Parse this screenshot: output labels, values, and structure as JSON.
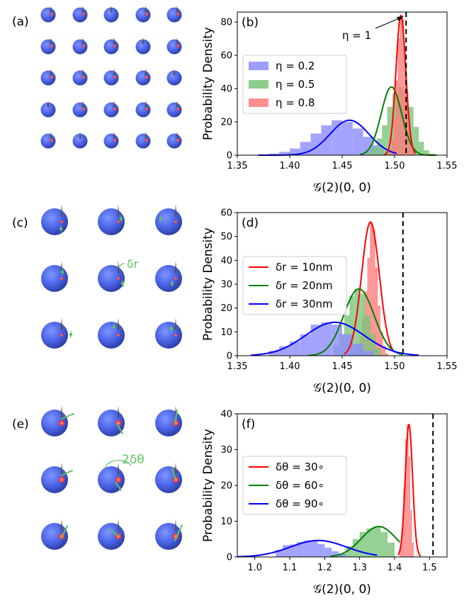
{
  "figure": {
    "panel_labels": {
      "a": "(a)",
      "c": "(c)",
      "e": "(e)"
    },
    "lattice_a": {
      "rows": 5,
      "cols": 5
    },
    "lattice_c": {
      "rows": 3,
      "cols": 3,
      "annotation": "δr"
    },
    "lattice_e": {
      "rows": 3,
      "cols": 3,
      "annotation": "2δθ"
    },
    "colors": {
      "sphere": "#4a64e8",
      "sphere_dark": "#2a3a9c",
      "emitter": "#ee3333",
      "displacement": "#5fc35f",
      "dipole": "#555555"
    },
    "icons": [
      "nanosphere-icon",
      "emitter-dot-icon",
      "dipole-arrow-icon",
      "displacement-arrow-icon"
    ]
  },
  "chart_data": [
    {
      "panel": "(b)",
      "type": "histogram",
      "xlabel": "𝒢(2)(0, 0)",
      "ylabel": "Probability Density",
      "xlim": [
        1.35,
        1.55
      ],
      "ylim": [
        0,
        86
      ],
      "xticks": [
        "1.35",
        "1.40",
        "1.45",
        "1.50",
        "1.55"
      ],
      "yticks": [
        "0",
        "20",
        "40",
        "60",
        "80"
      ],
      "legend_position": "center-left",
      "reference_line": {
        "x": 1.511,
        "style": "dashed",
        "label": "η = 1"
      },
      "series": [
        {
          "name": "η = 0.2",
          "color": "#0000ff",
          "fill": "#8c8cff",
          "bins": {
            "start": 1.37,
            "width": 0.01,
            "heights": [
              0.5,
              1,
              2,
              4,
              8,
              13,
              18,
              21,
              20,
              16,
              11,
              6,
              2
            ]
          },
          "curve": {
            "mu": 1.457,
            "sigma": 0.0185,
            "xmin": 1.37,
            "xmax": 1.502
          }
        },
        {
          "name": "η = 0.5",
          "color": "#008000",
          "fill": "#7ac47a",
          "bins": {
            "start": 1.473,
            "width": 0.005,
            "heights": [
              2,
              5,
              10,
              18,
              29,
              37,
              41,
              39,
              29,
              17,
              8,
              3,
              1
            ]
          },
          "curve": {
            "mu": 1.497,
            "sigma": 0.0098,
            "xmin": 1.467,
            "xmax": 1.54
          }
        },
        {
          "name": "η = 0.8",
          "color": "#ff0000",
          "fill": "#ff7a7a",
          "bins": {
            "start": 1.495,
            "width": 0.002,
            "heights": [
              4,
              10,
              22,
              45,
              70,
              84,
              82,
              63,
              38,
              18,
              7,
              2
            ]
          },
          "curve": {
            "mu": 1.506,
            "sigma": 0.0047,
            "xmin": 1.49,
            "xmax": 1.52
          }
        }
      ]
    },
    {
      "panel": "(d)",
      "type": "histogram",
      "xlabel": "𝒢(2)(0, 0)",
      "ylabel": "Probability Density",
      "xlim": [
        1.35,
        1.55
      ],
      "ylim": [
        0,
        60
      ],
      "xticks": [
        "1.35",
        "1.40",
        "1.45",
        "1.50",
        "1.55"
      ],
      "yticks": [
        "0",
        "10",
        "20",
        "30",
        "40",
        "50",
        "60"
      ],
      "legend_position": "center-left",
      "reference_line": {
        "x": 1.508,
        "style": "dashed"
      },
      "series": [
        {
          "name": "δr = 10nm",
          "color": "#ff0000",
          "fill": "#ff7a7a",
          "bins": {
            "start": 1.464,
            "width": 0.0025,
            "heights": [
              3,
              8,
              16,
              27,
              41,
              56,
              53,
              37,
              21,
              10,
              4,
              1
            ]
          },
          "curve": {
            "mu": 1.477,
            "sigma": 0.0085,
            "xmin": 1.452,
            "xmax": 1.5
          }
        },
        {
          "name": "δr = 20nm",
          "color": "#008000",
          "fill": "#7ac47a",
          "bins": {
            "start": 1.442,
            "width": 0.005,
            "heights": [
              4,
              9,
              17,
              25,
              28,
              26,
              17,
              9,
              3
            ]
          },
          "curve": {
            "mu": 1.466,
            "sigma": 0.0145,
            "xmin": 1.418,
            "xmax": 1.508
          }
        },
        {
          "name": "δr = 30nm",
          "color": "#0000ff",
          "fill": "#8c8cff",
          "bins": {
            "start": 1.38,
            "width": 0.01,
            "heights": [
              2,
              4,
              6,
              9,
              13,
              14,
              13,
              9,
              5,
              2
            ]
          },
          "curve": {
            "mu": 1.443,
            "sigma": 0.028,
            "xmin": 1.363,
            "xmax": 1.523
          }
        }
      ]
    },
    {
      "panel": "(f)",
      "type": "histogram",
      "xlabel": "𝒢(2)(0, 0)",
      "ylabel": "Probability Density",
      "xlim": [
        0.95,
        1.55
      ],
      "ylim": [
        0,
        40
      ],
      "xticks": [
        "1.0",
        "1.1",
        "1.2",
        "1.3",
        "1.4",
        "1.5"
      ],
      "yticks": [
        "0",
        "10",
        "20",
        "30",
        "40"
      ],
      "legend_position": "center-left",
      "reference_line": {
        "x": 1.51,
        "style": "dashed"
      },
      "series": [
        {
          "name": "δθ = 30∘",
          "color": "#ff0000",
          "fill": "#ff7a7a",
          "bins": {
            "start": 1.415,
            "width": 0.005,
            "heights": [
              3,
              8,
              19,
              33,
              37,
              28,
              13,
              4
            ]
          },
          "curve": {
            "mu": 1.441,
            "sigma": 0.0105,
            "xmin": 1.41,
            "xmax": 1.475
          }
        },
        {
          "name": "δθ = 60∘",
          "color": "#008000",
          "fill": "#7ac47a",
          "bins": {
            "start": 1.24,
            "width": 0.02,
            "heights": [
              1,
              3,
              5,
              7,
              8,
              8.5,
              7,
              4
            ]
          },
          "curve": {
            "mu": 1.355,
            "sigma": 0.05,
            "xmin": 1.215,
            "xmax": 1.415
          }
        },
        {
          "name": "δθ = 90∘",
          "color": "#0000ff",
          "fill": "#8c8cff",
          "bins": {
            "start": 1.06,
            "width": 0.02,
            "heights": [
              2,
              3.3,
              3.5,
              4.2,
              4.6,
              4.4,
              3.6,
              2.6,
              1.6,
              0.8
            ]
          },
          "curve": {
            "mu": 1.182,
            "sigma": 0.08,
            "xmin": 0.95,
            "xmax": 1.35
          }
        }
      ]
    }
  ]
}
